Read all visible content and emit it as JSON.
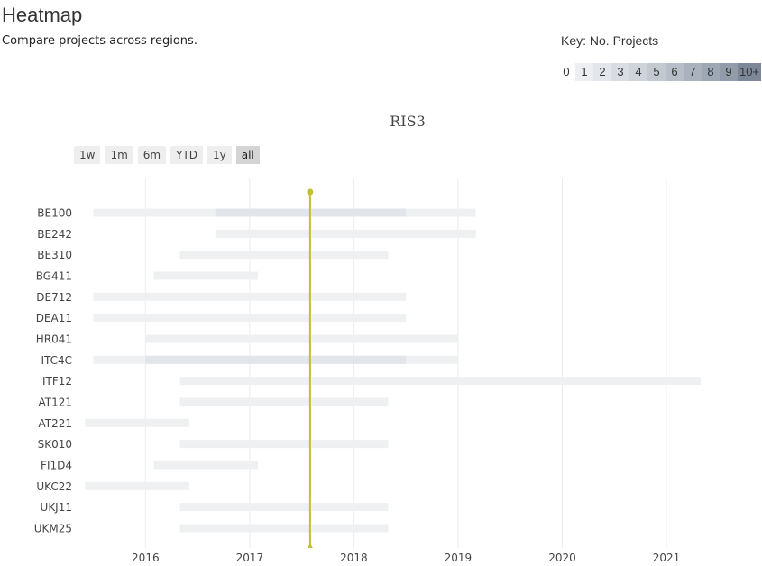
{
  "header": {
    "title": "Heatmap",
    "subtitle": "Compare projects across regions."
  },
  "key": {
    "label": "Key: No. Projects",
    "cells": [
      {
        "text": "0",
        "color": "#ffffff"
      },
      {
        "text": "1",
        "color": "#eceef1"
      },
      {
        "text": "2",
        "color": "#e3e6ea"
      },
      {
        "text": "3",
        "color": "#d9dde3"
      },
      {
        "text": "4",
        "color": "#cfd4db"
      },
      {
        "text": "5",
        "color": "#c3c9d1"
      },
      {
        "text": "6",
        "color": "#b7bec8"
      },
      {
        "text": "7",
        "color": "#aab2be"
      },
      {
        "text": "8",
        "color": "#9ea7b4"
      },
      {
        "text": "9",
        "color": "#919ba9"
      },
      {
        "text": "10+",
        "color": "#7c8797"
      }
    ]
  },
  "range_selector": {
    "buttons": [
      "1w",
      "1m",
      "6m",
      "YTD",
      "1y",
      "all"
    ],
    "active": "all"
  },
  "chart_data": {
    "type": "heatmap",
    "title": "RIS3",
    "xlabel": "",
    "ylabel": "",
    "x_range": [
      2015.4,
      2021.9
    ],
    "x_ticks": [
      "2016",
      "2017",
      "2018",
      "2019",
      "2020",
      "2021"
    ],
    "grid": true,
    "marker": {
      "x": 2017.58,
      "color": "#c1c12e"
    },
    "categories": [
      "BE100",
      "BE242",
      "BE310",
      "BG411",
      "DE712",
      "DEA11",
      "HR041",
      "ITC4C",
      "ITF12",
      "AT121",
      "AT221",
      "SK010",
      "FI1D4",
      "UKC22",
      "UKJ11",
      "UKM25"
    ],
    "bars": [
      {
        "region": "BE100",
        "start": 2015.5,
        "end": 2019.17,
        "count": 1
      },
      {
        "region": "BE100",
        "start": 2016.67,
        "end": 2018.5,
        "count": 2
      },
      {
        "region": "BE242",
        "start": 2016.67,
        "end": 2019.17,
        "count": 1
      },
      {
        "region": "BE310",
        "start": 2016.33,
        "end": 2018.33,
        "count": 1
      },
      {
        "region": "BG411",
        "start": 2016.08,
        "end": 2017.08,
        "count": 1
      },
      {
        "region": "DE712",
        "start": 2015.5,
        "end": 2018.5,
        "count": 1
      },
      {
        "region": "DEA11",
        "start": 2015.5,
        "end": 2018.5,
        "count": 1
      },
      {
        "region": "HR041",
        "start": 2016.0,
        "end": 2019.0,
        "count": 1
      },
      {
        "region": "ITC4C",
        "start": 2015.5,
        "end": 2019.0,
        "count": 1
      },
      {
        "region": "ITC4C",
        "start": 2016.0,
        "end": 2018.5,
        "count": 2
      },
      {
        "region": "ITF12",
        "start": 2016.33,
        "end": 2021.33,
        "count": 1
      },
      {
        "region": "AT121",
        "start": 2016.33,
        "end": 2018.33,
        "count": 1
      },
      {
        "region": "AT221",
        "start": 2015.42,
        "end": 2016.42,
        "count": 1
      },
      {
        "region": "SK010",
        "start": 2016.33,
        "end": 2018.33,
        "count": 1
      },
      {
        "region": "FI1D4",
        "start": 2016.08,
        "end": 2017.08,
        "count": 1
      },
      {
        "region": "UKC22",
        "start": 2015.42,
        "end": 2016.42,
        "count": 1
      },
      {
        "region": "UKJ11",
        "start": 2016.33,
        "end": 2018.33,
        "count": 1
      },
      {
        "region": "UKM25",
        "start": 2016.33,
        "end": 2018.33,
        "count": 1
      }
    ]
  }
}
